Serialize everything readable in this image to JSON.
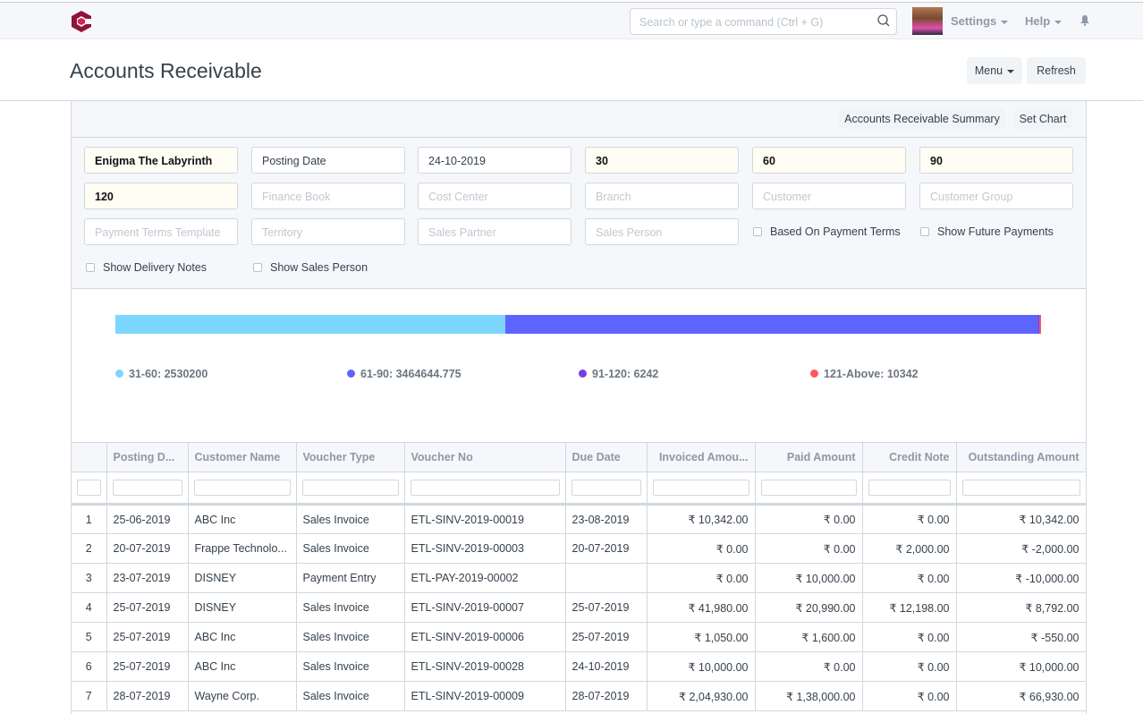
{
  "navbar": {
    "search_placeholder": "Search or type a command (Ctrl + G)",
    "settings": "Settings",
    "help": "Help"
  },
  "page": {
    "title": "Accounts Receivable",
    "menu": "Menu",
    "refresh": "Refresh"
  },
  "toolbar": {
    "summary": "Accounts Receivable Summary",
    "set_chart": "Set Chart"
  },
  "filters": {
    "company": "Enigma The Labyrinth",
    "ageing_based_on": "Posting Date",
    "report_date": "24-10-2019",
    "range1": "30",
    "range2": "60",
    "range3": "90",
    "range4": "120",
    "finance_book": "Finance Book",
    "cost_center": "Cost Center",
    "branch": "Branch",
    "customer": "Customer",
    "customer_group": "Customer Group",
    "payment_terms_template": "Payment Terms Template",
    "territory": "Territory",
    "sales_partner": "Sales Partner",
    "sales_person": "Sales Person",
    "based_on_payment_terms": "Based On Payment Terms",
    "show_future_payments": "Show Future Payments",
    "show_delivery_notes": "Show Delivery Notes",
    "show_sales_person": "Show Sales Person"
  },
  "chart_data": {
    "type": "bar",
    "stacked": true,
    "orientation": "horizontal",
    "series": [
      {
        "name": "31-60",
        "value": 2530200,
        "color": "#7cd6fd",
        "label": "31-60: 2530200"
      },
      {
        "name": "61-90",
        "value": 3464644.775,
        "color": "#5e64ff",
        "label": "61-90: 3464644.775"
      },
      {
        "name": "91-120",
        "value": 6242,
        "color": "#743ee2",
        "label": "91-120: 6242"
      },
      {
        "name": "121-Above",
        "value": 10342,
        "color": "#ff5858",
        "label": "121-Above: 10342"
      }
    ],
    "legend": "bottom"
  },
  "table": {
    "columns": [
      "Posting D...",
      "Customer Name",
      "Voucher Type",
      "Voucher No",
      "Due Date",
      "Invoiced Amou...",
      "Paid Amount",
      "Credit Note",
      "Outstanding Amount"
    ],
    "rows": [
      [
        "1",
        "25-06-2019",
        "ABC Inc",
        "Sales Invoice",
        "ETL-SINV-2019-00019",
        "23-08-2019",
        "₹ 10,342.00",
        "₹ 0.00",
        "₹ 0.00",
        "₹ 10,342.00"
      ],
      [
        "2",
        "20-07-2019",
        "Frappe Technolo...",
        "Sales Invoice",
        "ETL-SINV-2019-00003",
        "20-07-2019",
        "₹ 0.00",
        "₹ 0.00",
        "₹ 2,000.00",
        "₹ -2,000.00"
      ],
      [
        "3",
        "23-07-2019",
        "DISNEY",
        "Payment Entry",
        "ETL-PAY-2019-00002",
        "",
        "₹ 0.00",
        "₹ 10,000.00",
        "₹ 0.00",
        "₹ -10,000.00"
      ],
      [
        "4",
        "25-07-2019",
        "DISNEY",
        "Sales Invoice",
        "ETL-SINV-2019-00007",
        "25-07-2019",
        "₹ 41,980.00",
        "₹ 20,990.00",
        "₹ 12,198.00",
        "₹ 8,792.00"
      ],
      [
        "5",
        "25-07-2019",
        "ABC Inc",
        "Sales Invoice",
        "ETL-SINV-2019-00006",
        "25-07-2019",
        "₹ 1,050.00",
        "₹ 1,600.00",
        "₹ 0.00",
        "₹ -550.00"
      ],
      [
        "6",
        "25-07-2019",
        "ABC Inc",
        "Sales Invoice",
        "ETL-SINV-2019-00028",
        "24-10-2019",
        "₹ 10,000.00",
        "₹ 0.00",
        "₹ 0.00",
        "₹ 10,000.00"
      ],
      [
        "7",
        "28-07-2019",
        "Wayne Corp.",
        "Sales Invoice",
        "ETL-SINV-2019-00009",
        "28-07-2019",
        "₹ 2,04,930.00",
        "₹ 1,38,000.00",
        "₹ 0.00",
        "₹ 66,930.00"
      ]
    ]
  }
}
